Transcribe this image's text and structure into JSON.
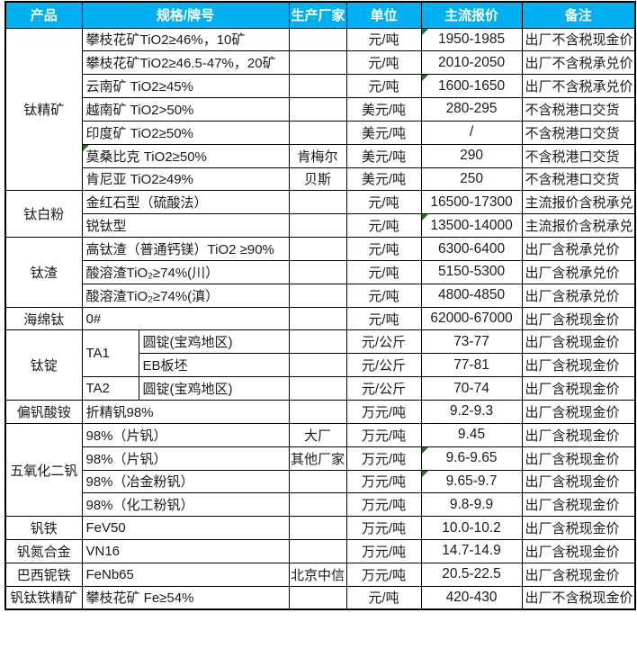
{
  "header": {
    "columns": [
      "产品",
      "规格/牌号",
      "生产厂家",
      "单位",
      "主流报价",
      "备注"
    ],
    "bg_color": "#00B0F0",
    "text_color": "#FFFFFF"
  },
  "colors": {
    "grid_border": "#000000",
    "error_flag_green": "#0E7F0E",
    "cell_bg": "#FFFFFF",
    "cell_text": "#1A1A1A"
  },
  "flag_meaning": "excel-number-stored-as-text-indicator",
  "table": {
    "rows": [
      [
        {
          "c": "product",
          "t": "钛精矿",
          "rs": 7
        },
        {
          "c": "spec",
          "t": "攀枝花矿TiO2≥46%，10矿",
          "cs": 2
        },
        {
          "c": "maker",
          "t": ""
        },
        {
          "c": "unit",
          "t": "元/吨"
        },
        {
          "c": "price",
          "t": "1950-1985",
          "flag": true
        },
        {
          "c": "note",
          "t": "出厂不含税现金价"
        }
      ],
      [
        {
          "c": "spec",
          "t": "攀枝花矿TiO2≥46.5-47%，20矿",
          "cs": 2
        },
        {
          "c": "maker",
          "t": ""
        },
        {
          "c": "unit",
          "t": "元/吨"
        },
        {
          "c": "price",
          "t": "2010-2050"
        },
        {
          "c": "note",
          "t": "出厂不含税承兑价"
        }
      ],
      [
        {
          "c": "spec",
          "t": "云南矿 TiO2≥45%",
          "cs": 2
        },
        {
          "c": "maker",
          "t": ""
        },
        {
          "c": "unit",
          "t": "元/吨"
        },
        {
          "c": "price",
          "t": "1600-1650",
          "flag": true
        },
        {
          "c": "note",
          "t": "出厂不含税承兑价"
        }
      ],
      [
        {
          "c": "spec",
          "t": "越南矿 TiO2>50%",
          "cs": 2
        },
        {
          "c": "maker",
          "t": ""
        },
        {
          "c": "unit",
          "t": "美元/吨"
        },
        {
          "c": "price",
          "t": "280-295"
        },
        {
          "c": "note",
          "t": "不含税港口交货"
        }
      ],
      [
        {
          "c": "spec",
          "t": "印度矿 TiO2≥50%",
          "cs": 2
        },
        {
          "c": "maker",
          "t": ""
        },
        {
          "c": "unit",
          "t": "美元/吨"
        },
        {
          "c": "price",
          "t": "/"
        },
        {
          "c": "note",
          "t": "不含税港口交货"
        }
      ],
      [
        {
          "c": "spec",
          "t": "莫桑比克 TiO2≥50%",
          "cs": 2,
          "flag": true
        },
        {
          "c": "maker",
          "t": "肯梅尔"
        },
        {
          "c": "unit",
          "t": "美元/吨"
        },
        {
          "c": "price",
          "t": "290"
        },
        {
          "c": "note",
          "t": "不含税港口交货"
        }
      ],
      [
        {
          "c": "spec",
          "t": "肯尼亚 TiO2≥49%",
          "cs": 2
        },
        {
          "c": "maker",
          "t": "贝斯"
        },
        {
          "c": "unit",
          "t": "美元/吨"
        },
        {
          "c": "price",
          "t": "250"
        },
        {
          "c": "note",
          "t": "不含税港口交货"
        }
      ],
      [
        {
          "c": "product",
          "t": "钛白粉",
          "rs": 2
        },
        {
          "c": "spec",
          "t": "金红石型（硫酸法）",
          "cs": 2
        },
        {
          "c": "maker",
          "t": ""
        },
        {
          "c": "unit",
          "t": "元/吨"
        },
        {
          "c": "price",
          "t": "16500-17300"
        },
        {
          "c": "note",
          "t": "主流报价含税承兑"
        }
      ],
      [
        {
          "c": "spec",
          "t": "锐钛型",
          "cs": 2
        },
        {
          "c": "maker",
          "t": ""
        },
        {
          "c": "unit",
          "t": "元/吨"
        },
        {
          "c": "price",
          "t": "13500-14000",
          "flag": true
        },
        {
          "c": "note",
          "t": "主流报价含税承兑"
        }
      ],
      [
        {
          "c": "product",
          "t": "钛渣",
          "rs": 3
        },
        {
          "c": "spec",
          "t": "高钛渣（普通钙镁）TiO2 ≥90%",
          "cs": 2
        },
        {
          "c": "maker",
          "t": ""
        },
        {
          "c": "unit",
          "t": "元/吨"
        },
        {
          "c": "price",
          "t": "6300-6400"
        },
        {
          "c": "note",
          "t": "出厂含税承兑价"
        }
      ],
      [
        {
          "c": "spec",
          "t": "酸溶渣TiO₂≥74%(川）",
          "cs": 2
        },
        {
          "c": "maker",
          "t": ""
        },
        {
          "c": "unit",
          "t": "元/吨"
        },
        {
          "c": "price",
          "t": "5150-5300"
        },
        {
          "c": "note",
          "t": "出厂含税承兑价"
        }
      ],
      [
        {
          "c": "spec",
          "t": "酸溶渣TiO₂≥74%(滇）",
          "cs": 2
        },
        {
          "c": "maker",
          "t": ""
        },
        {
          "c": "unit",
          "t": "元/吨"
        },
        {
          "c": "price",
          "t": "4800-4850"
        },
        {
          "c": "note",
          "t": "出厂含税承兑价"
        }
      ],
      [
        {
          "c": "product",
          "t": "海绵钛"
        },
        {
          "c": "spec",
          "t": "0#",
          "cs": 2
        },
        {
          "c": "maker",
          "t": ""
        },
        {
          "c": "unit",
          "t": "元/吨"
        },
        {
          "c": "price",
          "t": "62000-67000"
        },
        {
          "c": "note",
          "t": "出厂含税现金价"
        }
      ],
      [
        {
          "c": "product",
          "t": "钛锭",
          "rs": 3
        },
        {
          "c": "speca",
          "t": "TA1",
          "rs": 2
        },
        {
          "c": "specb",
          "t": "圆锭(宝鸡地区)"
        },
        {
          "c": "maker",
          "t": ""
        },
        {
          "c": "unit",
          "t": "元/公斤"
        },
        {
          "c": "price",
          "t": "73-77"
        },
        {
          "c": "note",
          "t": "出厂含税现金价"
        }
      ],
      [
        {
          "c": "specb",
          "t": "EB板坯"
        },
        {
          "c": "maker",
          "t": ""
        },
        {
          "c": "unit",
          "t": "元/公斤"
        },
        {
          "c": "price",
          "t": "77-81"
        },
        {
          "c": "note",
          "t": "出厂含税现金价"
        }
      ],
      [
        {
          "c": "speca",
          "t": "TA2"
        },
        {
          "c": "specb",
          "t": "圆锭(宝鸡地区)"
        },
        {
          "c": "maker",
          "t": ""
        },
        {
          "c": "unit",
          "t": "元/公斤"
        },
        {
          "c": "price",
          "t": "70-74"
        },
        {
          "c": "note",
          "t": "出厂含税现金价"
        }
      ],
      [
        {
          "c": "product",
          "t": "偏钒酸铵"
        },
        {
          "c": "spec",
          "t": "折精钒98%",
          "cs": 2
        },
        {
          "c": "maker",
          "t": ""
        },
        {
          "c": "unit",
          "t": "万元/吨"
        },
        {
          "c": "price",
          "t": "9.2-9.3"
        },
        {
          "c": "note",
          "t": "出厂含税现金价"
        }
      ],
      [
        {
          "c": "product",
          "t": "五氧化二钒",
          "rs": 4
        },
        {
          "c": "spec",
          "t": "98%（片钒）",
          "cs": 2
        },
        {
          "c": "maker",
          "t": "大厂"
        },
        {
          "c": "unit",
          "t": "万元/吨"
        },
        {
          "c": "price",
          "t": "9.45"
        },
        {
          "c": "note",
          "t": "出厂含税现金价"
        }
      ],
      [
        {
          "c": "spec",
          "t": "98%（片钒）",
          "cs": 2
        },
        {
          "c": "maker",
          "t": "其他厂家"
        },
        {
          "c": "unit",
          "t": "万元/吨"
        },
        {
          "c": "price",
          "t": "9.6-9.65",
          "flag": true
        },
        {
          "c": "note",
          "t": "出厂含税现金价"
        }
      ],
      [
        {
          "c": "spec",
          "t": "98%（冶金粉钒）",
          "cs": 2
        },
        {
          "c": "maker",
          "t": ""
        },
        {
          "c": "unit",
          "t": "万元/吨"
        },
        {
          "c": "price",
          "t": "9.65-9.7",
          "flag": true
        },
        {
          "c": "note",
          "t": "出厂含税现金价"
        }
      ],
      [
        {
          "c": "spec",
          "t": "98%（化工粉钒）",
          "cs": 2
        },
        {
          "c": "maker",
          "t": ""
        },
        {
          "c": "unit",
          "t": "万元/吨"
        },
        {
          "c": "price",
          "t": "9.8-9.9"
        },
        {
          "c": "note",
          "t": "出厂含税现金价"
        }
      ],
      [
        {
          "c": "product",
          "t": "钒铁"
        },
        {
          "c": "spec",
          "t": "FeV50",
          "cs": 2
        },
        {
          "c": "maker",
          "t": ""
        },
        {
          "c": "unit",
          "t": "万元/吨"
        },
        {
          "c": "price",
          "t": "10.0-10.2"
        },
        {
          "c": "note",
          "t": "出厂含税现金价"
        }
      ],
      [
        {
          "c": "product",
          "t": "钒氮合金"
        },
        {
          "c": "spec",
          "t": "VN16",
          "cs": 2
        },
        {
          "c": "maker",
          "t": ""
        },
        {
          "c": "unit",
          "t": "万元/吨"
        },
        {
          "c": "price",
          "t": "14.7-14.9"
        },
        {
          "c": "note",
          "t": "出厂含税现金价"
        }
      ],
      [
        {
          "c": "product",
          "t": "巴西铌铁"
        },
        {
          "c": "spec",
          "t": "FeNb65",
          "cs": 2
        },
        {
          "c": "maker",
          "t": "北京中信"
        },
        {
          "c": "unit",
          "t": "万元/吨"
        },
        {
          "c": "price",
          "t": "20.5-22.5"
        },
        {
          "c": "note",
          "t": "出厂含税现金价"
        }
      ],
      [
        {
          "c": "product",
          "t": "钒钛铁精矿"
        },
        {
          "c": "spec",
          "t": "攀枝花矿 Fe≥54%",
          "cs": 2
        },
        {
          "c": "maker",
          "t": ""
        },
        {
          "c": "unit",
          "t": "元/吨"
        },
        {
          "c": "price",
          "t": "420-430"
        },
        {
          "c": "note",
          "t": "出厂不含税现金价"
        }
      ]
    ]
  }
}
